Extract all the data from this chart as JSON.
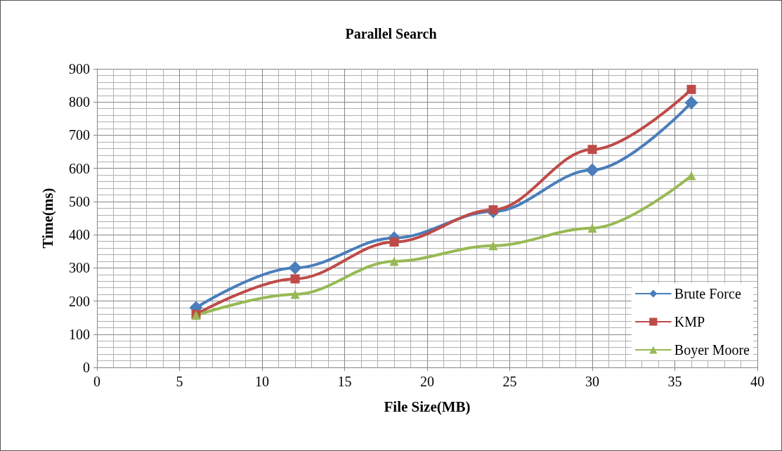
{
  "chart_data": {
    "type": "line",
    "title": "Parallel Search",
    "xlabel": "File Size(MB)",
    "ylabel": "Time(ms)",
    "x": [
      6,
      12,
      18,
      24,
      30,
      36
    ],
    "series": [
      {
        "name": "Brute Force",
        "color": "#4a7ebb",
        "marker": "diamond",
        "values": [
          180,
          300,
          390,
          470,
          595,
          798
        ]
      },
      {
        "name": "KMP",
        "color": "#be4b48",
        "marker": "square",
        "values": [
          160,
          267,
          378,
          475,
          657,
          838
        ]
      },
      {
        "name": "Boyer Moore",
        "color": "#98b954",
        "marker": "triangle",
        "values": [
          157,
          220,
          320,
          367,
          420,
          578
        ]
      }
    ],
    "xlim": [
      0,
      40
    ],
    "xticks": [
      0,
      5,
      10,
      15,
      20,
      25,
      30,
      35,
      40
    ],
    "ylim": [
      0,
      900
    ],
    "yticks": [
      0,
      100,
      200,
      300,
      400,
      500,
      600,
      700,
      800,
      900
    ],
    "grid": true,
    "legend": "bottom right",
    "line_style": "solid"
  }
}
